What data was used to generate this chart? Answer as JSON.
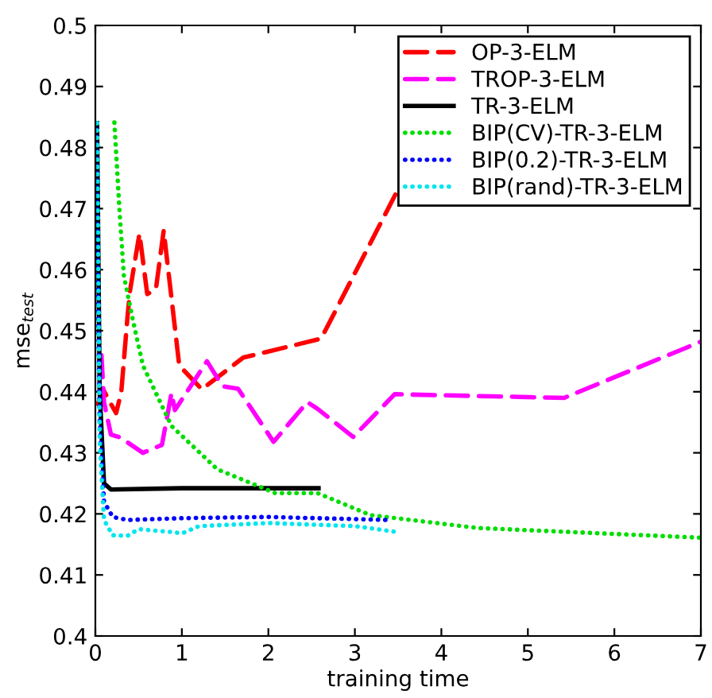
{
  "chart_data": {
    "type": "line",
    "xlabel": "training time",
    "ylabel": "mse$_{test}$",
    "xlim": [
      0,
      7
    ],
    "ylim": [
      0.4,
      0.5
    ],
    "xticks": [
      0,
      1,
      2,
      3,
      4,
      5,
      6,
      7
    ],
    "yticks": [
      0.4,
      0.41,
      0.42,
      0.43,
      0.44,
      0.45,
      0.46,
      0.47,
      0.48,
      0.49,
      0.5
    ],
    "grid": false,
    "legend": "top right",
    "marker": "none",
    "series": [
      {
        "name": "OP-3-ELM",
        "color": "#ff0000",
        "line_style": "dashed",
        "x": [
          0.03,
          0.09,
          0.18,
          0.24,
          0.3,
          0.37,
          0.4,
          0.51,
          0.6,
          0.7,
          0.79,
          0.97,
          1.23,
          1.71,
          2.61,
          3.49
        ],
        "values": [
          0.438,
          0.4404,
          0.438,
          0.4365,
          0.44,
          0.452,
          0.4565,
          0.4659,
          0.456,
          0.4568,
          0.4664,
          0.4443,
          0.4404,
          0.4456,
          0.4487,
          0.4729
        ]
      },
      {
        "name": "TROP-3-ELM",
        "color": "#ff00ff",
        "line_style": "dashed",
        "x": [
          0.07,
          0.1,
          0.18,
          0.29,
          0.55,
          0.77,
          0.88,
          0.92,
          1.29,
          1.47,
          1.65,
          2.06,
          2.45,
          2.57,
          2.98,
          3.46,
          5.42,
          7.0
        ],
        "values": [
          0.446,
          0.4383,
          0.433,
          0.4325,
          0.43,
          0.4313,
          0.4398,
          0.437,
          0.445,
          0.4409,
          0.4405,
          0.4318,
          0.4383,
          0.4372,
          0.4326,
          0.4396,
          0.439,
          0.4482
        ]
      },
      {
        "name": "TR-3-ELM",
        "color": "#000000",
        "line_style": "solid",
        "x": [
          0.02,
          0.05,
          0.1,
          0.18,
          1.0,
          2.58
        ],
        "values": [
          0.484,
          0.44,
          0.425,
          0.424,
          0.4242,
          0.4242
        ]
      },
      {
        "name": "BIP(CV)-TR-3-ELM",
        "color": "#00dd00",
        "line_style": "dotted",
        "x": [
          0.22,
          0.28,
          0.33,
          0.43,
          0.55,
          0.88,
          1.41,
          2.08,
          2.57,
          3.18,
          4.41,
          7.0
        ],
        "values": [
          0.4841,
          0.4695,
          0.459,
          0.452,
          0.4443,
          0.4344,
          0.4273,
          0.4234,
          0.4234,
          0.4198,
          0.4177,
          0.4161
        ]
      },
      {
        "name": "BIP(0.2)-TR-3-ELM",
        "color": "#0000ff",
        "line_style": "dotted",
        "x": [
          0.01,
          0.05,
          0.1,
          0.2,
          0.37,
          1.0,
          2.0,
          3.4
        ],
        "values": [
          0.483,
          0.435,
          0.422,
          0.4195,
          0.419,
          0.4193,
          0.4195,
          0.419
        ]
      },
      {
        "name": "BIP(rand)-TR-3-ELM",
        "color": "#00e5ee",
        "line_style": "dotted",
        "x": [
          0.02,
          0.05,
          0.1,
          0.2,
          0.37,
          0.5,
          0.9,
          1.0,
          1.2,
          2.0,
          3.0,
          3.5
        ],
        "values": [
          0.484,
          0.432,
          0.419,
          0.4165,
          0.4164,
          0.4175,
          0.417,
          0.4168,
          0.418,
          0.4185,
          0.418,
          0.417
        ]
      }
    ]
  }
}
